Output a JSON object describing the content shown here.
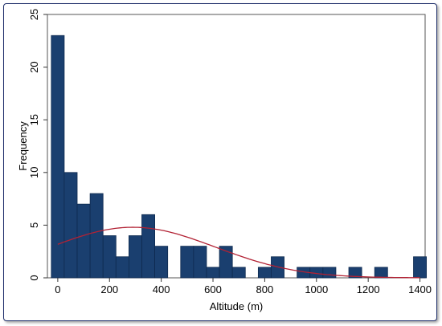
{
  "chart_data": {
    "type": "bar",
    "subtype": "histogram",
    "xlabel": "Altitude (m)",
    "ylabel": "Frequency",
    "xlim": [
      -40,
      1420
    ],
    "ylim": [
      0,
      25
    ],
    "x_ticks": [
      0,
      200,
      400,
      600,
      800,
      1000,
      1200,
      1400
    ],
    "y_ticks": [
      0,
      5,
      10,
      15,
      20,
      25
    ],
    "bin_width": 50,
    "bins": [
      {
        "x0": 0,
        "value": 23
      },
      {
        "x0": 50,
        "value": 10
      },
      {
        "x0": 100,
        "value": 7
      },
      {
        "x0": 150,
        "value": 8
      },
      {
        "x0": 200,
        "value": 4
      },
      {
        "x0": 250,
        "value": 2
      },
      {
        "x0": 300,
        "value": 4
      },
      {
        "x0": 350,
        "value": 6
      },
      {
        "x0": 400,
        "value": 3
      },
      {
        "x0": 450,
        "value": 0
      },
      {
        "x0": 500,
        "value": 3
      },
      {
        "x0": 550,
        "value": 3
      },
      {
        "x0": 600,
        "value": 1
      },
      {
        "x0": 650,
        "value": 3
      },
      {
        "x0": 700,
        "value": 1
      },
      {
        "x0": 750,
        "value": 0
      },
      {
        "x0": 800,
        "value": 1
      },
      {
        "x0": 850,
        "value": 2
      },
      {
        "x0": 900,
        "value": 0
      },
      {
        "x0": 950,
        "value": 1
      },
      {
        "x0": 1000,
        "value": 1
      },
      {
        "x0": 1050,
        "value": 1
      },
      {
        "x0": 1100,
        "value": 0
      },
      {
        "x0": 1150,
        "value": 1
      },
      {
        "x0": 1200,
        "value": 0
      },
      {
        "x0": 1250,
        "value": 1
      },
      {
        "x0": 1300,
        "value": 0
      },
      {
        "x0": 1350,
        "value": 0
      },
      {
        "x0": 1400,
        "value": 2
      }
    ],
    "normal_curve": {
      "mean": 290,
      "sd": 320,
      "peak": 4.8
    },
    "bar_color": "#1a3f6f",
    "bar_edge_color": "#0e2a4f",
    "curve_color": "#b22234",
    "grid": false
  }
}
